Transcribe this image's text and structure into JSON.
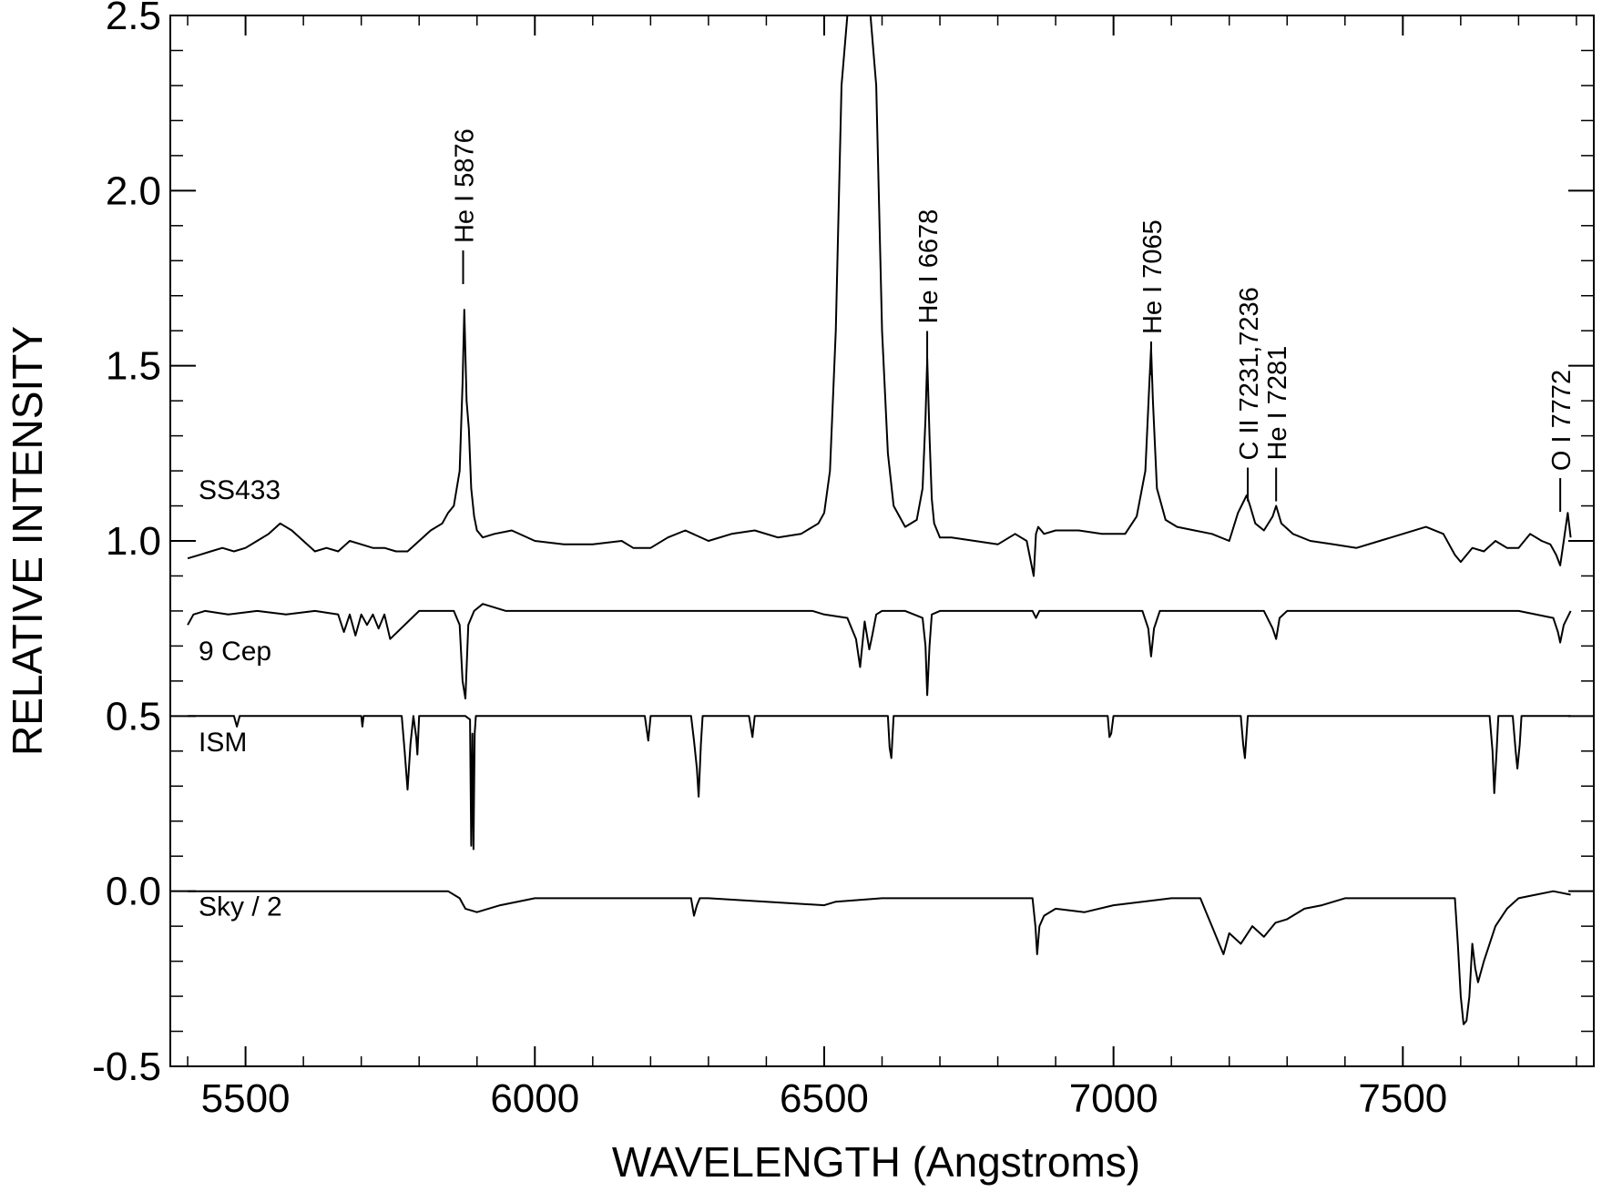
{
  "chart_data": {
    "type": "line",
    "title": "",
    "xlabel": "WAVELENGTH (Angstroms)",
    "ylabel": "RELATIVE INTENSITY",
    "xlim": [
      5370,
      7830
    ],
    "ylim": [
      -0.5,
      2.5
    ],
    "x_ticks": [
      5500,
      6000,
      6500,
      7000,
      7500
    ],
    "x_tick_labels": [
      "5500",
      "6000",
      "6500",
      "7000",
      "7500"
    ],
    "y_ticks": [
      -0.5,
      0.0,
      0.5,
      1.0,
      1.5,
      2.0,
      2.5
    ],
    "y_tick_labels": [
      "-0.5",
      "0.0",
      "0.5",
      "1.0",
      "1.5",
      "2.0",
      "2.5"
    ],
    "grid": false,
    "legend": "none",
    "line_color": "#000000",
    "series": [
      {
        "name": "SS433",
        "label_at": [
          5400,
          1.12
        ],
        "x": [
          5400,
          5420,
          5440,
          5460,
          5480,
          5500,
          5520,
          5540,
          5560,
          5580,
          5600,
          5620,
          5640,
          5660,
          5680,
          5700,
          5720,
          5740,
          5760,
          5780,
          5800,
          5820,
          5840,
          5850,
          5860,
          5870,
          5875,
          5878,
          5882,
          5886,
          5890,
          5895,
          5900,
          5910,
          5930,
          5960,
          6000,
          6050,
          6100,
          6150,
          6170,
          6200,
          6230,
          6260,
          6300,
          6340,
          6380,
          6420,
          6460,
          6490,
          6500,
          6510,
          6520,
          6530,
          6540,
          6560,
          6580,
          6590,
          6600,
          6610,
          6620,
          6640,
          6660,
          6670,
          6675,
          6678,
          6682,
          6686,
          6690,
          6700,
          6720,
          6760,
          6800,
          6830,
          6850,
          6862,
          6866,
          6870,
          6880,
          6900,
          6940,
          6980,
          7020,
          7040,
          7055,
          7062,
          7065,
          7068,
          7075,
          7090,
          7110,
          7140,
          7170,
          7200,
          7215,
          7230,
          7236,
          7245,
          7260,
          7275,
          7281,
          7290,
          7310,
          7340,
          7380,
          7420,
          7460,
          7500,
          7540,
          7570,
          7590,
          7600,
          7620,
          7640,
          7660,
          7680,
          7700,
          7720,
          7740,
          7755,
          7765,
          7772,
          7778,
          7785,
          7790
        ],
        "values": [
          0.95,
          0.96,
          0.97,
          0.98,
          0.97,
          0.98,
          1.0,
          1.02,
          1.05,
          1.03,
          1.0,
          0.97,
          0.98,
          0.97,
          1.0,
          0.99,
          0.98,
          0.98,
          0.97,
          0.97,
          1.0,
          1.03,
          1.05,
          1.08,
          1.1,
          1.2,
          1.45,
          1.66,
          1.4,
          1.32,
          1.15,
          1.07,
          1.03,
          1.01,
          1.02,
          1.03,
          1.0,
          0.99,
          0.99,
          1.0,
          0.98,
          0.98,
          1.01,
          1.03,
          1.0,
          1.02,
          1.03,
          1.01,
          1.02,
          1.05,
          1.08,
          1.2,
          1.6,
          2.3,
          2.55,
          2.55,
          2.55,
          2.3,
          1.6,
          1.25,
          1.1,
          1.04,
          1.06,
          1.15,
          1.35,
          1.52,
          1.3,
          1.12,
          1.05,
          1.01,
          1.01,
          1.0,
          0.99,
          1.02,
          1.0,
          0.9,
          1.02,
          1.04,
          1.02,
          1.03,
          1.03,
          1.02,
          1.02,
          1.07,
          1.2,
          1.45,
          1.55,
          1.4,
          1.15,
          1.06,
          1.04,
          1.03,
          1.02,
          1.0,
          1.08,
          1.13,
          1.1,
          1.05,
          1.03,
          1.07,
          1.1,
          1.05,
          1.02,
          1.0,
          0.99,
          0.98,
          1.0,
          1.02,
          1.04,
          1.02,
          0.96,
          0.94,
          0.98,
          0.97,
          1.0,
          0.98,
          0.98,
          1.02,
          1.0,
          0.99,
          0.96,
          0.93,
          1.0,
          1.08,
          1.01
        ]
      },
      {
        "name": "9 Cep",
        "label_at": [
          5400,
          0.66
        ],
        "x": [
          5400,
          5410,
          5430,
          5470,
          5520,
          5570,
          5620,
          5660,
          5670,
          5680,
          5690,
          5700,
          5710,
          5720,
          5730,
          5740,
          5750,
          5800,
          5860,
          5870,
          5875,
          5880,
          5885,
          5895,
          5910,
          5950,
          6000,
          6100,
          6200,
          6300,
          6400,
          6480,
          6500,
          6540,
          6555,
          6562,
          6570,
          6578,
          6583,
          6590,
          6600,
          6640,
          6670,
          6675,
          6678,
          6682,
          6686,
          6700,
          6800,
          6860,
          6866,
          6872,
          6900,
          7000,
          7050,
          7060,
          7065,
          7070,
          7080,
          7200,
          7260,
          7275,
          7281,
          7287,
          7300,
          7500,
          7700,
          7760,
          7768,
          7772,
          7778,
          7790
        ],
        "values": [
          0.76,
          0.79,
          0.8,
          0.79,
          0.8,
          0.79,
          0.8,
          0.79,
          0.74,
          0.79,
          0.73,
          0.79,
          0.76,
          0.79,
          0.75,
          0.79,
          0.72,
          0.8,
          0.8,
          0.76,
          0.6,
          0.55,
          0.76,
          0.8,
          0.82,
          0.8,
          0.8,
          0.8,
          0.8,
          0.8,
          0.8,
          0.8,
          0.79,
          0.78,
          0.72,
          0.64,
          0.77,
          0.69,
          0.73,
          0.79,
          0.8,
          0.8,
          0.78,
          0.7,
          0.56,
          0.7,
          0.79,
          0.8,
          0.8,
          0.8,
          0.78,
          0.8,
          0.8,
          0.8,
          0.8,
          0.75,
          0.67,
          0.75,
          0.8,
          0.8,
          0.8,
          0.75,
          0.72,
          0.78,
          0.8,
          0.8,
          0.8,
          0.78,
          0.74,
          0.71,
          0.76,
          0.8
        ]
      },
      {
        "name": "ISM",
        "label_at": [
          5400,
          0.4
        ],
        "x": [
          5400,
          5480,
          5485,
          5490,
          5700,
          5702,
          5704,
          5770,
          5775,
          5780,
          5785,
          5790,
          5795,
          5797,
          5800,
          5840,
          5880,
          5888,
          5890,
          5892,
          5894,
          5896,
          5898,
          5900,
          5910,
          6190,
          6196,
          6200,
          6270,
          6275,
          6280,
          6283,
          6287,
          6290,
          6300,
          6370,
          6376,
          6380,
          6610,
          6613,
          6616,
          6620,
          6990,
          6993,
          6996,
          7000,
          7220,
          7224,
          7227,
          7232,
          7600,
          7650,
          7655,
          7658,
          7662,
          7665,
          7690,
          7695,
          7698,
          7702,
          7705,
          7790
        ],
        "values": [
          0.5,
          0.5,
          0.47,
          0.5,
          0.5,
          0.47,
          0.5,
          0.5,
          0.4,
          0.29,
          0.42,
          0.5,
          0.44,
          0.39,
          0.5,
          0.5,
          0.5,
          0.49,
          0.13,
          0.45,
          0.12,
          0.45,
          0.5,
          0.5,
          0.5,
          0.5,
          0.43,
          0.5,
          0.5,
          0.43,
          0.35,
          0.27,
          0.42,
          0.5,
          0.5,
          0.5,
          0.44,
          0.5,
          0.5,
          0.41,
          0.38,
          0.5,
          0.5,
          0.44,
          0.45,
          0.5,
          0.5,
          0.42,
          0.38,
          0.5,
          0.5,
          0.5,
          0.4,
          0.28,
          0.4,
          0.5,
          0.5,
          0.4,
          0.35,
          0.42,
          0.5,
          0.5
        ]
      },
      {
        "name": "Sky / 2",
        "label_at": [
          5400,
          -0.07
        ],
        "x": [
          5400,
          5850,
          5870,
          5880,
          5900,
          5940,
          6000,
          6100,
          6200,
          6270,
          6275,
          6280,
          6285,
          6300,
          6500,
          6520,
          6600,
          6860,
          6865,
          6868,
          6872,
          6880,
          6900,
          6950,
          7000,
          7100,
          7150,
          7160,
          7170,
          7180,
          7190,
          7200,
          7220,
          7240,
          7260,
          7280,
          7300,
          7330,
          7360,
          7400,
          7500,
          7590,
          7595,
          7600,
          7605,
          7610,
          7615,
          7620,
          7625,
          7630,
          7640,
          7660,
          7680,
          7700,
          7730,
          7760,
          7790
        ],
        "values": [
          0.0,
          0.0,
          -0.02,
          -0.05,
          -0.06,
          -0.04,
          -0.02,
          -0.02,
          -0.02,
          -0.02,
          -0.07,
          -0.04,
          -0.02,
          -0.02,
          -0.04,
          -0.03,
          -0.02,
          -0.02,
          -0.1,
          -0.18,
          -0.1,
          -0.07,
          -0.05,
          -0.06,
          -0.04,
          -0.02,
          -0.02,
          -0.06,
          -0.1,
          -0.14,
          -0.18,
          -0.12,
          -0.15,
          -0.1,
          -0.13,
          -0.09,
          -0.08,
          -0.05,
          -0.04,
          -0.02,
          -0.02,
          -0.02,
          -0.15,
          -0.3,
          -0.38,
          -0.37,
          -0.3,
          -0.15,
          -0.22,
          -0.26,
          -0.2,
          -0.1,
          -0.05,
          -0.02,
          -0.01,
          0.0,
          -0.01
        ]
      }
    ],
    "line_annotations": [
      {
        "label": "He I 5876",
        "wavelength": 5876,
        "text_y": 1.85
      },
      {
        "label": "He I 6678",
        "wavelength": 6678,
        "text_y": 1.62
      },
      {
        "label": "He I 7065",
        "wavelength": 7065,
        "text_y": 1.59
      },
      {
        "label": "C II  7231,7236",
        "wavelength": 7232,
        "text_y": 1.23
      },
      {
        "label": "He I 7281",
        "wavelength": 7281,
        "text_y": 1.23
      },
      {
        "label": "O I 7772",
        "wavelength": 7772,
        "text_y": 1.2
      }
    ]
  }
}
